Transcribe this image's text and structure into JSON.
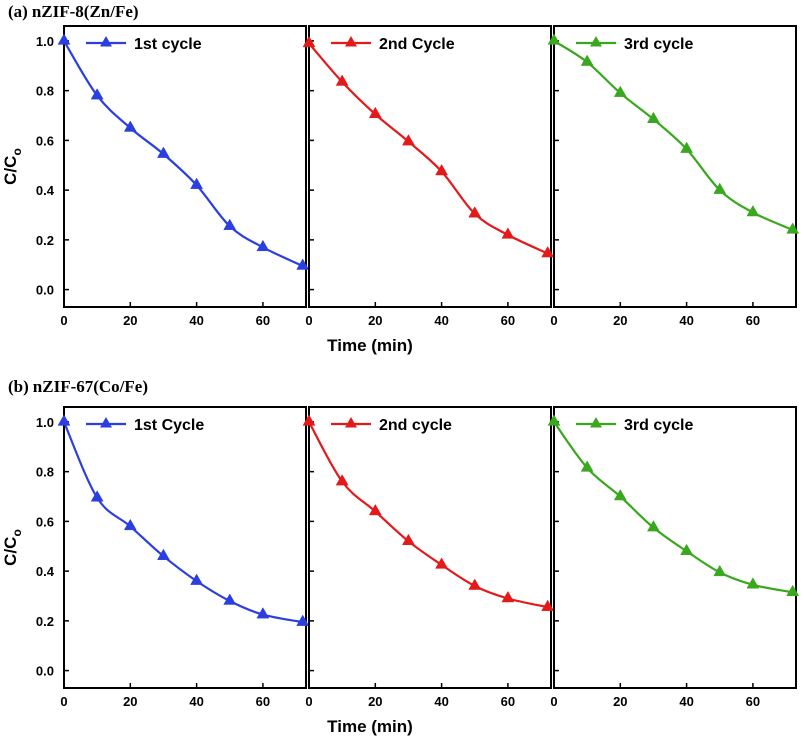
{
  "figure": {
    "xlabel": "Time (min)",
    "ylabel_main": "C/C",
    "ylabel_sub": "o"
  },
  "chart_data": [
    {
      "type": "line",
      "title": "(a) nZIF-8(Zn/Fe)",
      "title_prefix": "(a)",
      "title_name": "nZIF-8(Zn/Fe)",
      "xlabel": "Time (min)",
      "ylabel": "C/Co",
      "xlim": [
        0,
        73
      ],
      "ylim": [
        -0.07,
        1.06
      ],
      "xticks": [
        "0",
        "20",
        "40",
        "60"
      ],
      "yticks": [
        "0.0",
        "0.2",
        "0.4",
        "0.6",
        "0.8",
        "1.0"
      ],
      "x": [
        0,
        10,
        20,
        30,
        40,
        50,
        60,
        72
      ],
      "series": [
        {
          "name": "1st cycle",
          "color": "#2b3fe0",
          "values": [
            1.0,
            0.78,
            0.65,
            0.545,
            0.42,
            0.255,
            0.17,
            0.095
          ]
        },
        {
          "name": "2nd Cycle",
          "color": "#e41a1a",
          "values": [
            0.99,
            0.835,
            0.705,
            0.595,
            0.475,
            0.305,
            0.22,
            0.145
          ]
        },
        {
          "name": "3rd cycle",
          "color": "#3aa81e",
          "values": [
            1.0,
            0.915,
            0.79,
            0.685,
            0.565,
            0.4,
            0.31,
            0.24
          ]
        }
      ]
    },
    {
      "type": "line",
      "title": "(b) nZIF-67(Co/Fe)",
      "title_prefix": "(b)",
      "title_name": "nZIF-67(Co/Fe)",
      "xlabel": "Time (min)",
      "ylabel": "C/Co",
      "xlim": [
        0,
        73
      ],
      "ylim": [
        -0.07,
        1.06
      ],
      "xticks": [
        "0",
        "20",
        "40",
        "60"
      ],
      "yticks": [
        "0.0",
        "0.2",
        "0.4",
        "0.6",
        "0.8",
        "1.0"
      ],
      "x": [
        0,
        10,
        20,
        30,
        40,
        50,
        60,
        72
      ],
      "series": [
        {
          "name": "1st Cycle",
          "color": "#2b3fe0",
          "values": [
            1.0,
            0.695,
            0.58,
            0.46,
            0.36,
            0.28,
            0.225,
            0.195
          ]
        },
        {
          "name": "2nd cycle",
          "color": "#e41a1a",
          "values": [
            1.0,
            0.76,
            0.64,
            0.52,
            0.425,
            0.34,
            0.29,
            0.255
          ]
        },
        {
          "name": "3rd cycle",
          "color": "#3aa81e",
          "values": [
            1.0,
            0.815,
            0.7,
            0.575,
            0.48,
            0.395,
            0.345,
            0.315
          ]
        }
      ]
    }
  ]
}
